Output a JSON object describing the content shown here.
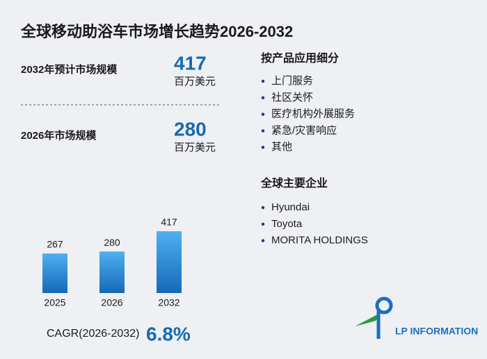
{
  "header": {
    "title": "全球移动助浴车市场增长趋势2026-2032"
  },
  "stats": [
    {
      "label": "2032年预计市场规模",
      "value": 417,
      "unit": "百万美元"
    },
    {
      "label": "2026年市场规模",
      "value": 280,
      "unit": "百万美元"
    }
  ],
  "segments": {
    "heading": "按产品应用细分",
    "items": [
      "上门服务",
      "社区关怀",
      "医疗机构外展服务",
      "紧急/灾害响应",
      "其他"
    ]
  },
  "companies": {
    "heading": "全球主要企业",
    "items": [
      "Hyundai",
      "Toyota",
      "MORITA HOLDINGS"
    ]
  },
  "chart_data": {
    "type": "bar",
    "categories": [
      "2025",
      "2026",
      "2032"
    ],
    "values": [
      267,
      280,
      417
    ],
    "color": "#1f7fd0"
  },
  "cagr": {
    "label": "CAGR(2026-2032)",
    "value": "6.8%"
  },
  "logo": {
    "text": "LP INFORMATION"
  }
}
